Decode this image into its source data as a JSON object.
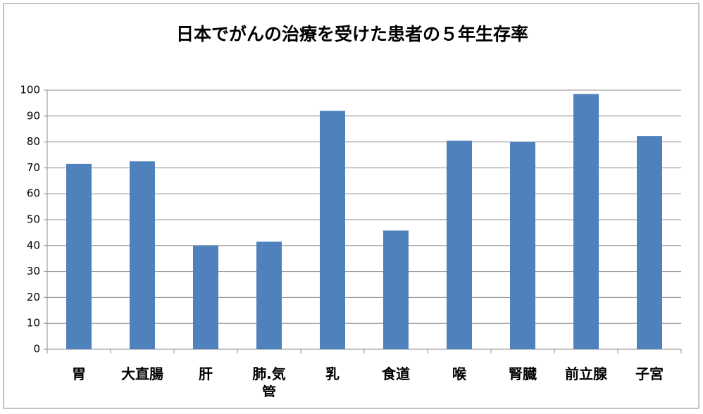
{
  "chart_data": {
    "type": "bar",
    "title": "日本でがんの治療を受けた患者の５年生存率",
    "categories": [
      "胃",
      "大直腸",
      "肝",
      "肺.気管",
      "乳",
      "食道",
      "喉",
      "腎臓",
      "前立腺",
      "子宮"
    ],
    "values": [
      71.5,
      72.5,
      40,
      41.5,
      92,
      45.8,
      80.5,
      80,
      98.5,
      82.3
    ],
    "color": "#4f81bd",
    "ylim": [
      0,
      100
    ],
    "yticks": [
      0,
      10,
      20,
      30,
      40,
      50,
      60,
      70,
      80,
      90,
      100
    ],
    "grid": true
  }
}
